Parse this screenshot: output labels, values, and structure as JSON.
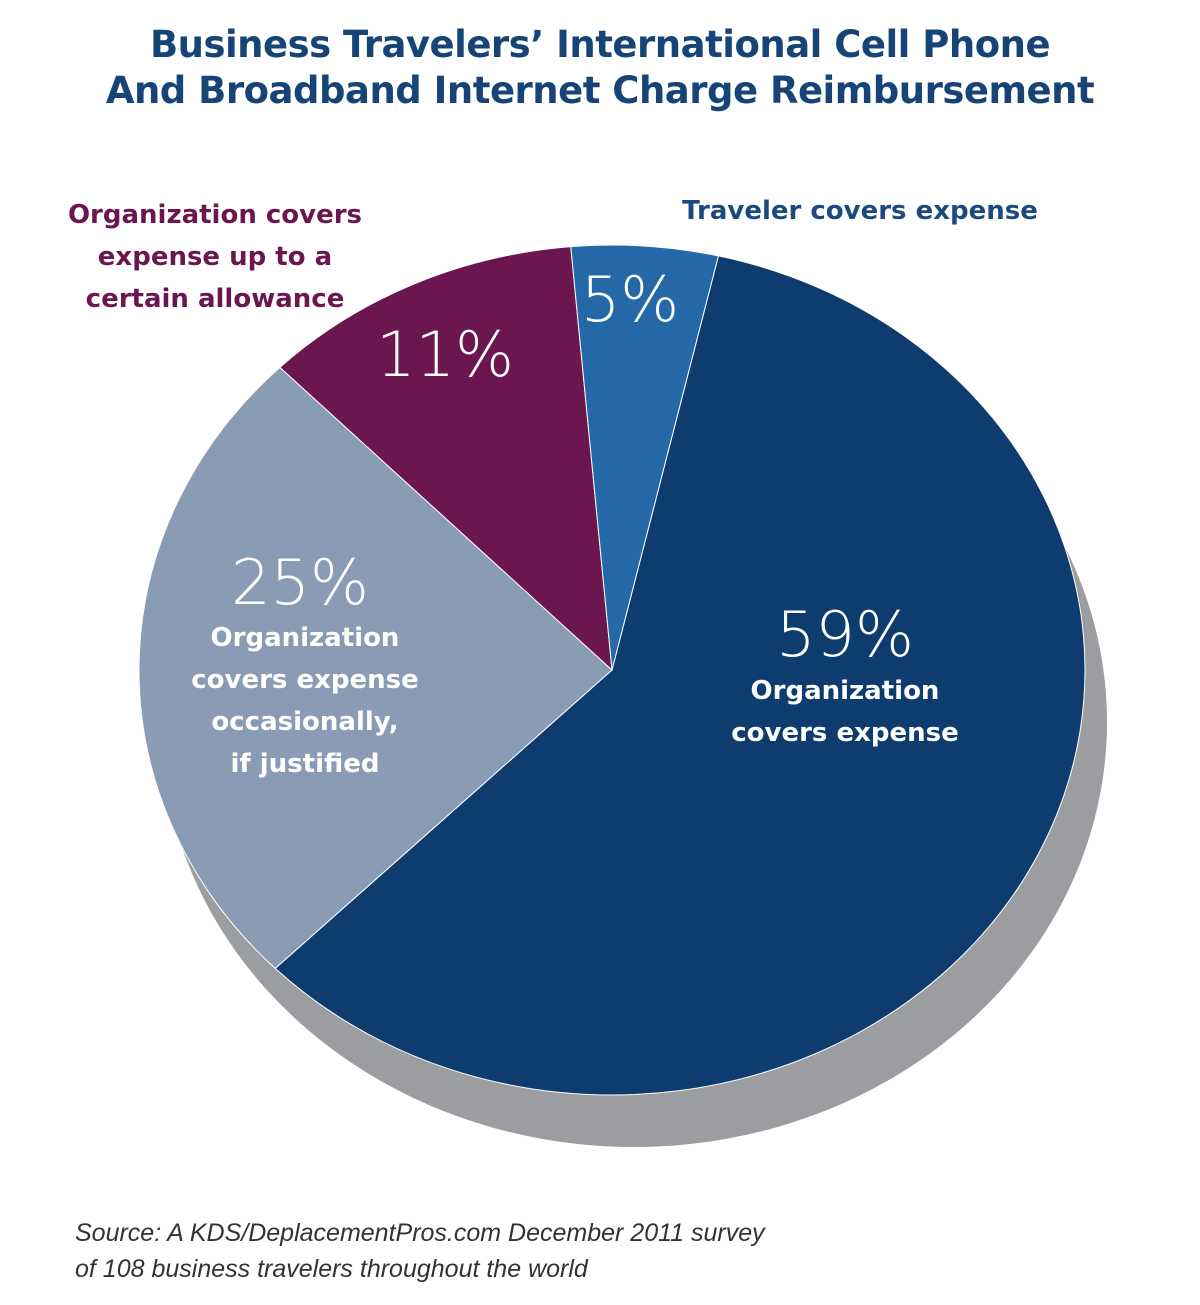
{
  "chart_data": {
    "type": "pie",
    "title_lines": [
      "Business Travelers’ International Cell Phone",
      "And Broadband Internet Charge Reimbursement"
    ],
    "slices": [
      {
        "label_lines": [
          "Organization",
          "covers expense"
        ],
        "value": 59,
        "value_label": "59%",
        "color": "#0e3c6f"
      },
      {
        "label_lines": [
          "Organization",
          "covers expense",
          "occasionally,",
          "if justified"
        ],
        "value": 25,
        "value_label": "25%",
        "color": "#8a9cb3"
      },
      {
        "label_lines": [
          "Organization covers",
          "expense up to a",
          "certain allowance"
        ],
        "value": 11,
        "value_label": "11%",
        "color": "#6c1650",
        "label_color": "#6c1650"
      },
      {
        "label_lines": [
          "Traveler covers expense"
        ],
        "value": 5,
        "value_label": "5%",
        "color": "#2468a8",
        "label_color": "#1a4a80"
      }
    ],
    "shadow_color": "#9b9da1",
    "source_lines": [
      "Source: A KDS/DeplacementPros.com December 2011 survey",
      "of 108 business travelers throughout the world"
    ]
  }
}
